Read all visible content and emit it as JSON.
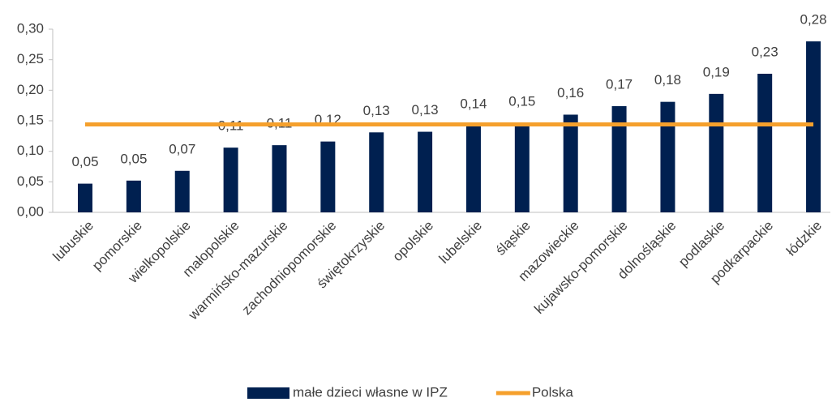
{
  "chart_data": {
    "type": "bar",
    "categories": [
      "lubuskie",
      "pomorskie",
      "wielkopolskie",
      "małopolskie",
      "warmińsko-mazurskie",
      "zachodniopomorskie",
      "świętokrzyskie",
      "opolskie",
      "lubelskie",
      "śląskie",
      "mazowieckie",
      "kujawsko-pomorskie",
      "dolnośląskie",
      "podlaskie",
      "podkarpackie",
      "łódzkie"
    ],
    "series": [
      {
        "name": "małe dzieci własne w IPZ",
        "type": "bar",
        "color": "#002050",
        "values": [
          0.047,
          0.052,
          0.068,
          0.106,
          0.11,
          0.116,
          0.131,
          0.132,
          0.142,
          0.146,
          0.16,
          0.174,
          0.181,
          0.194,
          0.227,
          0.28
        ],
        "value_labels": [
          "0,05",
          "0,05",
          "0,07",
          "0,11",
          "0,11",
          "0,12",
          "0,13",
          "0,13",
          "0,14",
          "0,15",
          "0,16",
          "0,17",
          "0,18",
          "0,19",
          "0,23",
          "0,28"
        ]
      },
      {
        "name": "Polska",
        "type": "line",
        "color": "#F5A02C",
        "values": [
          0.144,
          0.144,
          0.144,
          0.144,
          0.144,
          0.144,
          0.144,
          0.144,
          0.144,
          0.144,
          0.144,
          0.144,
          0.144,
          0.144,
          0.144,
          0.144
        ]
      }
    ],
    "ylim": [
      0,
      0.3
    ],
    "yticks": [
      {
        "value": 0,
        "label": "0,00"
      },
      {
        "value": 0.05,
        "label": "0,05"
      },
      {
        "value": 0.1,
        "label": "0,10"
      },
      {
        "value": 0.15,
        "label": "0,15"
      },
      {
        "value": 0.2,
        "label": "0,20"
      },
      {
        "value": 0.25,
        "label": "0,25"
      },
      {
        "value": 0.3,
        "label": "0,30"
      }
    ],
    "legend": "bottom"
  }
}
